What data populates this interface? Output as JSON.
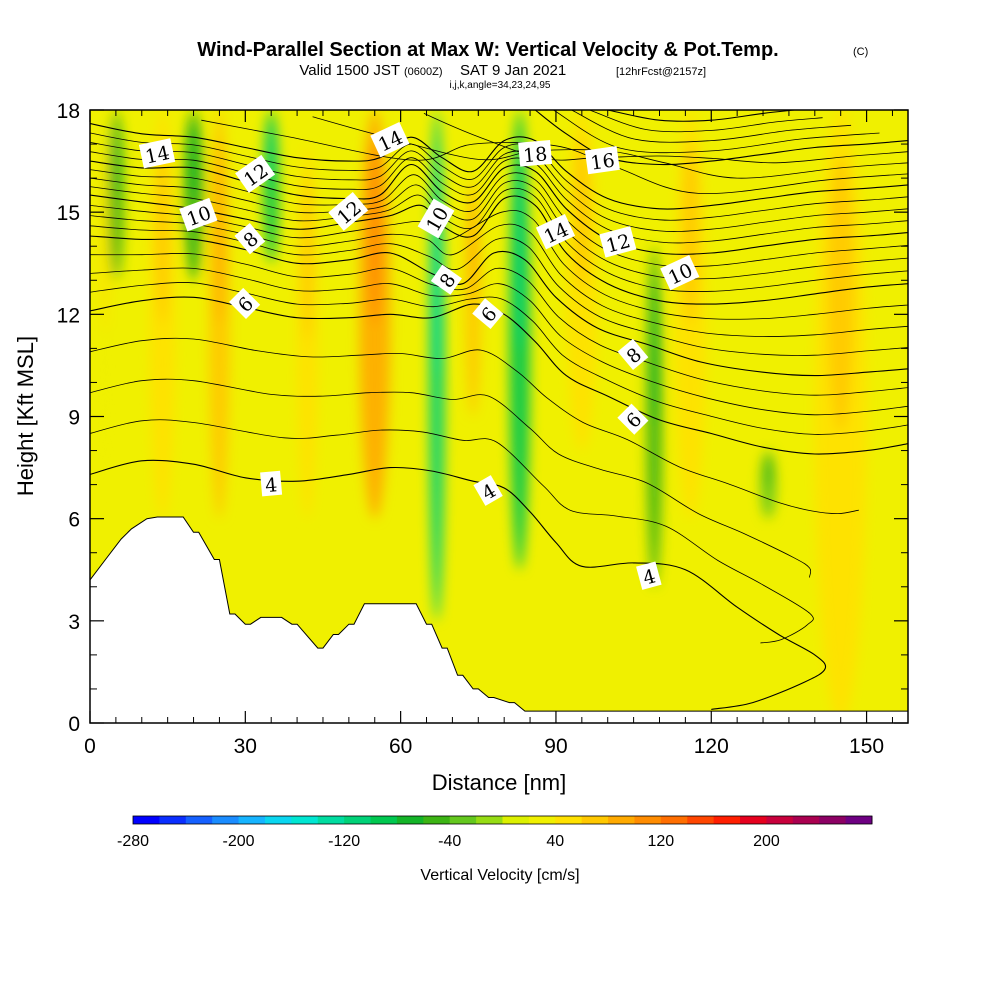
{
  "title": {
    "main": "Wind-Parallel Section at Max W: Vertical Velocity & Pot.Temp.",
    "copyright": "(C)",
    "valid_prefix": "Valid 1500 JST",
    "valid_utc": "(0600Z)",
    "valid_date": "SAT 9 Jan 2021",
    "forecast": "[12hrFcst@2157z]",
    "indices": "i,j,k,angle=34,23,24,95"
  },
  "chart_data": {
    "type": "heatmap",
    "xlabel": "Distance [nm]",
    "ylabel": "Height [Kft MSL]",
    "xlim": [
      0,
      158
    ],
    "ylim": [
      0,
      18
    ],
    "x_ticks": [
      0,
      30,
      60,
      90,
      120,
      150
    ],
    "y_ticks": [
      0,
      3,
      6,
      9,
      12,
      15,
      18
    ],
    "x_tick_labels": [
      "0",
      "30",
      "60",
      "90",
      "120",
      "150"
    ],
    "y_tick_labels": [
      "0",
      "3",
      "6",
      "9",
      "12",
      "15",
      "18"
    ],
    "colorbar": {
      "title": "Vertical Velocity [cm/s]",
      "min": -280,
      "max": 280,
      "step": 20,
      "tick_values": [
        -280,
        -200,
        -120,
        -40,
        40,
        120,
        200
      ],
      "tick_labels": [
        "-280",
        "-200",
        "-120",
        "-40",
        "40",
        "120",
        "200"
      ],
      "colors": [
        "#0000ff",
        "#0a2eff",
        "#1560ff",
        "#1a8cff",
        "#16b4ff",
        "#0ad6f0",
        "#00e6d2",
        "#00dca0",
        "#00d278",
        "#00c850",
        "#14b428",
        "#3cb414",
        "#64c81e",
        "#96dc14",
        "#dcf000",
        "#f0f000",
        "#ffe100",
        "#ffc800",
        "#ffaa00",
        "#ff8c00",
        "#ff6e00",
        "#ff4600",
        "#ff1e00",
        "#e6001e",
        "#c8003c",
        "#aa0050",
        "#8c0064",
        "#6e0082"
      ]
    },
    "velocity_features": [
      {
        "kind": "updraft",
        "x": 3,
        "base_kft": 5.5,
        "top_kft": 18,
        "width_nm": 3,
        "value_cms": 30
      },
      {
        "kind": "downdraft",
        "x": 5,
        "base_kft": 13,
        "top_kft": 18,
        "width_nm": 3,
        "value_cms": -50
      },
      {
        "kind": "updraft",
        "x": 14,
        "base_kft": 6,
        "top_kft": 18,
        "width_nm": 5,
        "value_cms": 40
      },
      {
        "kind": "downdraft",
        "x": 20,
        "base_kft": 13,
        "top_kft": 18,
        "width_nm": 4,
        "value_cms": -60
      },
      {
        "kind": "updraft",
        "x": 25,
        "base_kft": 6,
        "top_kft": 18,
        "width_nm": 4,
        "value_cms": 60
      },
      {
        "kind": "downdraft",
        "x": 35,
        "base_kft": 13.5,
        "top_kft": 18,
        "width_nm": 3,
        "value_cms": -90
      },
      {
        "kind": "updraft",
        "x": 42,
        "base_kft": 6,
        "top_kft": 17,
        "width_nm": 4,
        "value_cms": 40
      },
      {
        "kind": "updraft",
        "x": 55,
        "base_kft": 6,
        "top_kft": 18,
        "width_nm": 6,
        "value_cms": 80
      },
      {
        "kind": "downdraft",
        "x": 67,
        "base_kft": 3,
        "top_kft": 18,
        "width_nm": 3,
        "value_cms": -110
      },
      {
        "kind": "updraft",
        "x": 74,
        "base_kft": 9,
        "top_kft": 16,
        "width_nm": 3,
        "value_cms": 60
      },
      {
        "kind": "downdraft",
        "x": 83,
        "base_kft": 4.5,
        "top_kft": 18,
        "width_nm": 4,
        "value_cms": -90
      },
      {
        "kind": "updraft",
        "x": 95,
        "base_kft": 8,
        "top_kft": 18,
        "width_nm": 6,
        "value_cms": 50
      },
      {
        "kind": "downdraft",
        "x": 109,
        "base_kft": 4,
        "top_kft": 14,
        "width_nm": 3,
        "value_cms": -60
      },
      {
        "kind": "updraft",
        "x": 116,
        "base_kft": 6,
        "top_kft": 18,
        "width_nm": 6,
        "value_cms": 40
      },
      {
        "kind": "downdraft",
        "x": 131,
        "base_kft": 6,
        "top_kft": 8,
        "width_nm": 3,
        "value_cms": -40
      },
      {
        "kind": "updraft",
        "x": 145,
        "base_kft": 0,
        "top_kft": 18,
        "width_nm": 10,
        "value_cms": 40
      }
    ],
    "terrain": {
      "x": [
        0,
        3,
        6,
        8,
        11,
        13,
        18,
        20,
        21,
        24,
        25,
        27,
        28,
        30,
        31,
        33,
        34,
        36,
        37,
        39,
        40,
        44,
        45,
        47,
        48,
        50,
        51,
        53,
        54,
        57,
        58,
        62,
        63,
        65,
        66,
        68,
        69,
        71,
        72,
        74,
        75,
        77,
        78,
        81,
        82,
        84,
        85,
        158
      ],
      "height_kft": [
        4.2,
        4.8,
        5.4,
        5.7,
        6.0,
        6.05,
        6.05,
        5.6,
        5.6,
        4.8,
        4.8,
        3.2,
        3.2,
        2.9,
        2.9,
        3.1,
        3.1,
        3.1,
        3.1,
        2.9,
        2.9,
        2.2,
        2.2,
        2.6,
        2.6,
        2.9,
        2.9,
        3.5,
        3.5,
        3.5,
        3.5,
        3.5,
        3.5,
        2.9,
        2.9,
        2.2,
        2.2,
        1.4,
        1.4,
        1.0,
        1.0,
        0.75,
        0.75,
        0.6,
        0.6,
        0.35,
        0.35,
        0.35
      ]
    },
    "theta_contours": [
      {
        "label": "4",
        "points": [
          [
            0,
            7.3
          ],
          [
            10,
            7.7
          ],
          [
            20,
            7.6
          ],
          [
            30,
            7.2
          ],
          [
            40,
            7.1
          ],
          [
            50,
            7.3
          ],
          [
            58,
            7.5
          ],
          [
            66,
            7.4
          ],
          [
            74,
            7.1
          ],
          [
            80,
            6.9
          ],
          [
            85,
            6.2
          ],
          [
            90,
            5.3
          ],
          [
            95,
            4.6
          ],
          [
            105,
            4.7
          ],
          [
            115,
            4.5
          ],
          [
            125,
            3.4
          ],
          [
            133,
            2.6
          ],
          [
            140,
            2.0
          ],
          [
            142,
            1.6
          ],
          [
            138,
            1.2
          ],
          [
            128,
            0.6
          ],
          [
            120,
            0.4
          ]
        ]
      },
      {
        "label": "6",
        "points": [
          [
            0,
            12.1
          ],
          [
            10,
            12.4
          ],
          [
            20,
            12.5
          ],
          [
            30,
            12.2
          ],
          [
            40,
            11.9
          ],
          [
            50,
            11.9
          ],
          [
            58,
            12.0
          ],
          [
            66,
            11.9
          ],
          [
            74,
            12.3
          ],
          [
            80,
            12.0
          ],
          [
            86,
            11.2
          ],
          [
            92,
            10.2
          ],
          [
            100,
            9.6
          ],
          [
            110,
            8.9
          ],
          [
            120,
            8.5
          ],
          [
            130,
            8.1
          ],
          [
            140,
            7.9
          ],
          [
            150,
            8.0
          ],
          [
            158,
            8.2
          ]
        ]
      },
      {
        "label": "8",
        "points": [
          [
            0,
            14.3
          ],
          [
            10,
            14.2
          ],
          [
            20,
            14.2
          ],
          [
            30,
            13.9
          ],
          [
            40,
            13.5
          ],
          [
            50,
            13.6
          ],
          [
            58,
            13.8
          ],
          [
            66,
            13.2
          ],
          [
            72,
            12.9
          ],
          [
            78,
            13.8
          ],
          [
            84,
            13.6
          ],
          [
            90,
            12.5
          ],
          [
            98,
            11.6
          ],
          [
            108,
            11.1
          ],
          [
            118,
            10.6
          ],
          [
            130,
            10.3
          ],
          [
            140,
            10.2
          ],
          [
            150,
            10.3
          ],
          [
            158,
            10.4
          ]
        ]
      },
      {
        "label": "10",
        "points": [
          [
            0,
            15.5
          ],
          [
            10,
            15.3
          ],
          [
            20,
            15.1
          ],
          [
            30,
            14.8
          ],
          [
            40,
            14.5
          ],
          [
            50,
            14.7
          ],
          [
            58,
            14.9
          ],
          [
            64,
            15.2
          ],
          [
            68,
            14.6
          ],
          [
            74,
            14.3
          ],
          [
            80,
            15.4
          ],
          [
            86,
            15.2
          ],
          [
            92,
            13.8
          ],
          [
            100,
            12.9
          ],
          [
            110,
            12.4
          ],
          [
            120,
            12.3
          ],
          [
            130,
            12.4
          ],
          [
            140,
            12.6
          ],
          [
            150,
            12.8
          ],
          [
            158,
            12.9
          ]
        ]
      },
      {
        "label": "12",
        "points": [
          [
            0,
            16.5
          ],
          [
            10,
            16.3
          ],
          [
            20,
            16.3
          ],
          [
            30,
            15.9
          ],
          [
            40,
            15.5
          ],
          [
            50,
            15.4
          ],
          [
            56,
            15.5
          ],
          [
            62,
            16.4
          ],
          [
            68,
            15.6
          ],
          [
            74,
            15.3
          ],
          [
            80,
            16.3
          ],
          [
            86,
            16.2
          ],
          [
            92,
            15.1
          ],
          [
            100,
            14.2
          ],
          [
            110,
            13.8
          ],
          [
            120,
            13.8
          ],
          [
            130,
            14.0
          ],
          [
            140,
            14.2
          ],
          [
            150,
            14.3
          ],
          [
            158,
            14.4
          ]
        ]
      },
      {
        "label": "14",
        "points": [
          [
            0,
            17.6
          ],
          [
            10,
            17.3
          ],
          [
            20,
            17.2
          ],
          [
            30,
            16.9
          ],
          [
            40,
            16.6
          ],
          [
            50,
            16.5
          ],
          [
            56,
            16.6
          ],
          [
            62,
            17.2
          ],
          [
            68,
            16.6
          ],
          [
            74,
            16.2
          ],
          [
            80,
            17.1
          ],
          [
            86,
            17.1
          ],
          [
            92,
            16.2
          ],
          [
            100,
            15.4
          ],
          [
            110,
            15.1
          ],
          [
            120,
            15.2
          ],
          [
            130,
            15.4
          ],
          [
            140,
            15.6
          ],
          [
            150,
            15.7
          ],
          [
            158,
            15.8
          ]
        ]
      },
      {
        "label": "16",
        "points": [
          [
            86,
            18.0
          ],
          [
            92,
            17.3
          ],
          [
            100,
            16.6
          ],
          [
            110,
            16.4
          ],
          [
            120,
            16.5
          ],
          [
            130,
            16.7
          ],
          [
            140,
            16.9
          ],
          [
            150,
            17.0
          ],
          [
            158,
            17.1
          ]
        ]
      },
      {
        "label": "18",
        "points": [
          [
            100,
            18.0
          ],
          [
            110,
            17.7
          ],
          [
            120,
            17.7
          ],
          [
            130,
            17.9
          ],
          [
            136,
            18.0
          ]
        ]
      }
    ],
    "contour_labels": [
      {
        "text": "14",
        "x": 13,
        "y": 16.7,
        "angle": -12
      },
      {
        "text": "12",
        "x": 32,
        "y": 16.1,
        "angle": -35
      },
      {
        "text": "10",
        "x": 21,
        "y": 14.9,
        "angle": -20
      },
      {
        "text": "8",
        "x": 31,
        "y": 14.2,
        "angle": -40
      },
      {
        "text": "6",
        "x": 30,
        "y": 12.3,
        "angle": -45
      },
      {
        "text": "4",
        "x": 35,
        "y": 7.0,
        "angle": -5
      },
      {
        "text": "14",
        "x": 58,
        "y": 17.1,
        "angle": -25
      },
      {
        "text": "12",
        "x": 50,
        "y": 15.0,
        "angle": -40
      },
      {
        "text": "10",
        "x": 67,
        "y": 14.8,
        "angle": -60
      },
      {
        "text": "8",
        "x": 69,
        "y": 13.0,
        "angle": -55
      },
      {
        "text": "6",
        "x": 77,
        "y": 12.0,
        "angle": -50
      },
      {
        "text": "4",
        "x": 77,
        "y": 6.8,
        "angle": -30
      },
      {
        "text": "18",
        "x": 86,
        "y": 16.7,
        "angle": -5
      },
      {
        "text": "16",
        "x": 99,
        "y": 16.5,
        "angle": -8
      },
      {
        "text": "14",
        "x": 90,
        "y": 14.4,
        "angle": -25
      },
      {
        "text": "12",
        "x": 102,
        "y": 14.1,
        "angle": -15
      },
      {
        "text": "10",
        "x": 114,
        "y": 13.2,
        "angle": -25
      },
      {
        "text": "8",
        "x": 105,
        "y": 10.8,
        "angle": -40
      },
      {
        "text": "6",
        "x": 105,
        "y": 8.9,
        "angle": -45
      },
      {
        "text": "4",
        "x": 108,
        "y": 4.3,
        "angle": -15
      }
    ]
  }
}
